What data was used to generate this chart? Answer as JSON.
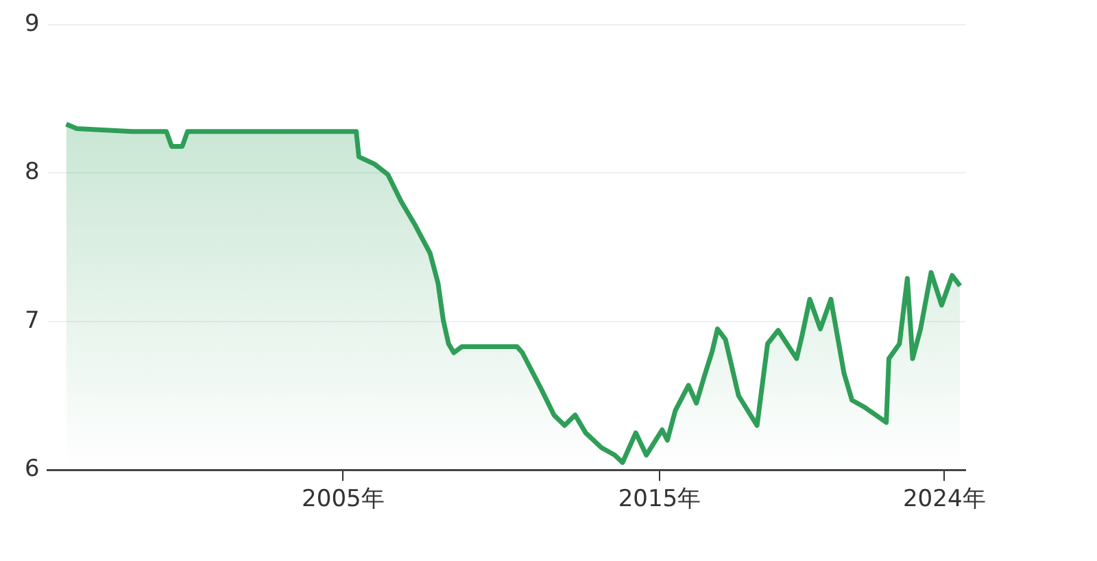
{
  "chart_data": {
    "type": "area",
    "x": [
      "1996-04",
      "1996-08",
      "1998-05",
      "1999-06",
      "1999-08",
      "1999-12",
      "2000-02",
      "2005-06",
      "2005-07",
      "2006-01",
      "2006-06",
      "2006-11",
      "2007-04",
      "2007-10",
      "2008-01",
      "2008-03",
      "2008-05",
      "2008-07",
      "2008-10",
      "2010-07",
      "2010-09",
      "2011-04",
      "2011-09",
      "2012-01",
      "2012-05",
      "2012-09",
      "2013-03",
      "2013-08",
      "2013-11",
      "2014-04",
      "2014-08",
      "2015-02",
      "2015-04",
      "2015-07",
      "2015-12",
      "2016-03",
      "2016-06",
      "2016-09",
      "2016-11",
      "2017-02",
      "2017-07",
      "2018-02",
      "2018-06",
      "2018-10",
      "2019-05",
      "2019-07",
      "2019-10",
      "2020-02",
      "2020-06",
      "2020-11",
      "2021-02",
      "2021-07",
      "2022-03",
      "2022-04",
      "2022-08",
      "2022-11",
      "2023-01",
      "2023-04",
      "2023-08",
      "2023-12",
      "2024-04",
      "2024-07"
    ],
    "series": [
      {
        "color": "#2e9e58",
        "values": [
          8.33,
          8.3,
          8.28,
          8.28,
          8.18,
          8.18,
          8.28,
          8.28,
          8.11,
          8.06,
          7.99,
          7.81,
          7.66,
          7.46,
          7.26,
          7.01,
          6.85,
          6.79,
          6.83,
          6.83,
          6.79,
          6.55,
          6.37,
          6.3,
          6.37,
          6.25,
          6.15,
          6.1,
          6.05,
          6.25,
          6.1,
          6.27,
          6.2,
          6.4,
          6.57,
          6.45,
          6.63,
          6.8,
          6.95,
          6.88,
          6.5,
          6.3,
          6.85,
          6.94,
          6.75,
          6.9,
          7.15,
          6.95,
          7.15,
          6.65,
          6.47,
          6.42,
          6.32,
          6.75,
          6.85,
          7.29,
          6.75,
          6.95,
          7.33,
          7.11,
          7.31,
          7.24
        ]
      }
    ],
    "xlim": [
      "1995-09",
      "2024-09"
    ],
    "xticks": [
      {
        "value": "2005",
        "label": "2005年"
      },
      {
        "value": "2015",
        "label": "2015年"
      },
      {
        "value": "2024",
        "label": "2024年"
      }
    ],
    "ylim": [
      6,
      9
    ],
    "yticks": [
      6,
      7,
      8,
      9
    ],
    "grid": "y",
    "legend": false
  }
}
